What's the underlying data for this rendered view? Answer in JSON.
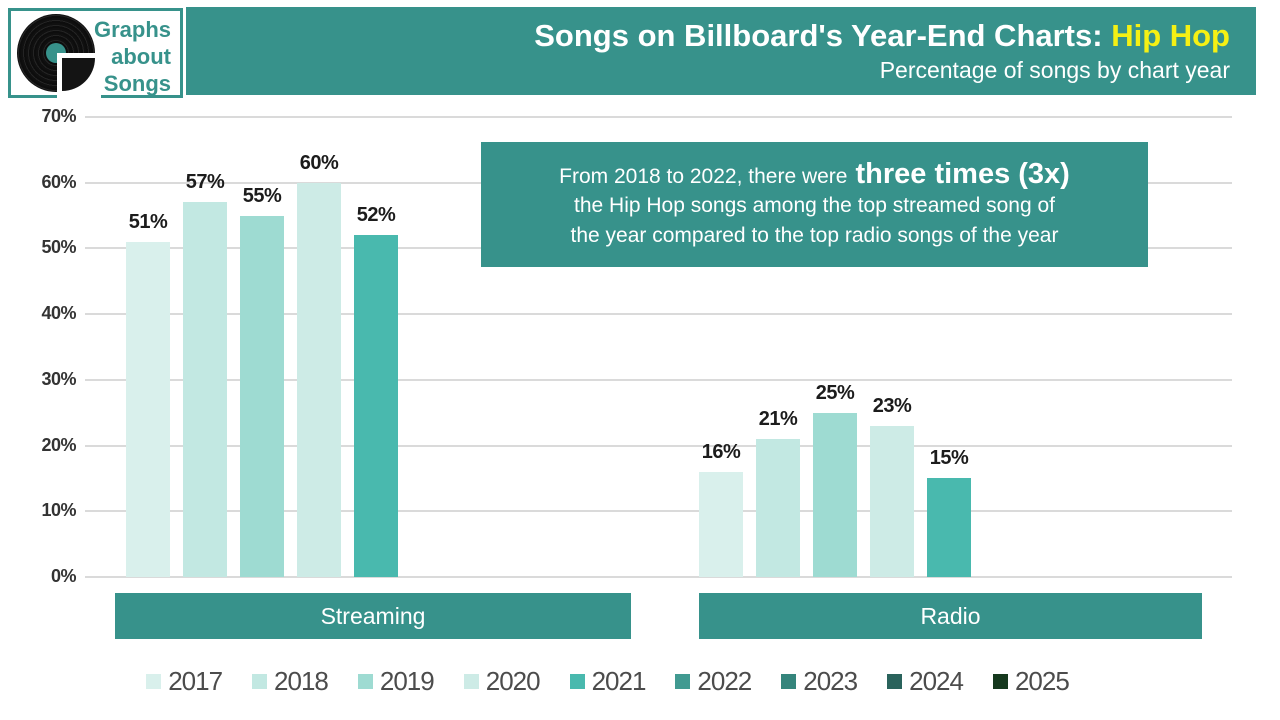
{
  "logo": {
    "lines": [
      "Graphs",
      "about",
      "Songs"
    ]
  },
  "header": {
    "title_prefix": "Songs on Billboard's Year-End Charts: ",
    "title_highlight": "Hip Hop",
    "subtitle": "Percentage of songs by chart year"
  },
  "annotation": {
    "line1_regular": "From 2018 to 2022, there were",
    "line1_big": "three times (3x)",
    "line2": "the Hip Hop songs among the top streamed song of",
    "line3": "the year compared to the top radio songs of the year"
  },
  "colors": {
    "teal": "#37928b",
    "yellow": "#f5f014",
    "grid": "#dadada",
    "record_black": "#141414",
    "tick_label": "#333333",
    "value_label": "#1c1c1c",
    "legend_label": "#4c4c4c"
  },
  "chart_data": {
    "type": "bar",
    "title": "Songs on Billboard's Year-End Charts: Hip Hop",
    "subtitle": "Percentage of songs by chart year",
    "categories": [
      "Streaming",
      "Radio"
    ],
    "series": [
      {
        "name": "2017",
        "color": "#d9f0ec",
        "values": [
          51,
          16
        ]
      },
      {
        "name": "2018",
        "color": "#c2e8e2",
        "values": [
          57,
          21
        ]
      },
      {
        "name": "2019",
        "color": "#9edbd2",
        "values": [
          55,
          25
        ]
      },
      {
        "name": "2020",
        "color": "#cdebe6",
        "values": [
          60,
          23
        ]
      },
      {
        "name": "2021",
        "color": "#49b9ae",
        "values": [
          52,
          15
        ]
      },
      {
        "name": "2022",
        "color": "#419a91",
        "values": [
          null,
          null
        ]
      },
      {
        "name": "2023",
        "color": "#35857c",
        "values": [
          null,
          null
        ]
      },
      {
        "name": "2024",
        "color": "#2a635c",
        "values": [
          null,
          null
        ]
      },
      {
        "name": "2025",
        "color": "#16391e",
        "values": [
          null,
          null
        ]
      }
    ],
    "value_suffix": "%",
    "ylim": [
      0,
      70
    ],
    "ytick_step": 10,
    "yticks": [
      "0%",
      "10%",
      "20%",
      "30%",
      "40%",
      "50%",
      "60%",
      "70%"
    ],
    "grid": true,
    "legend_position": "bottom"
  }
}
